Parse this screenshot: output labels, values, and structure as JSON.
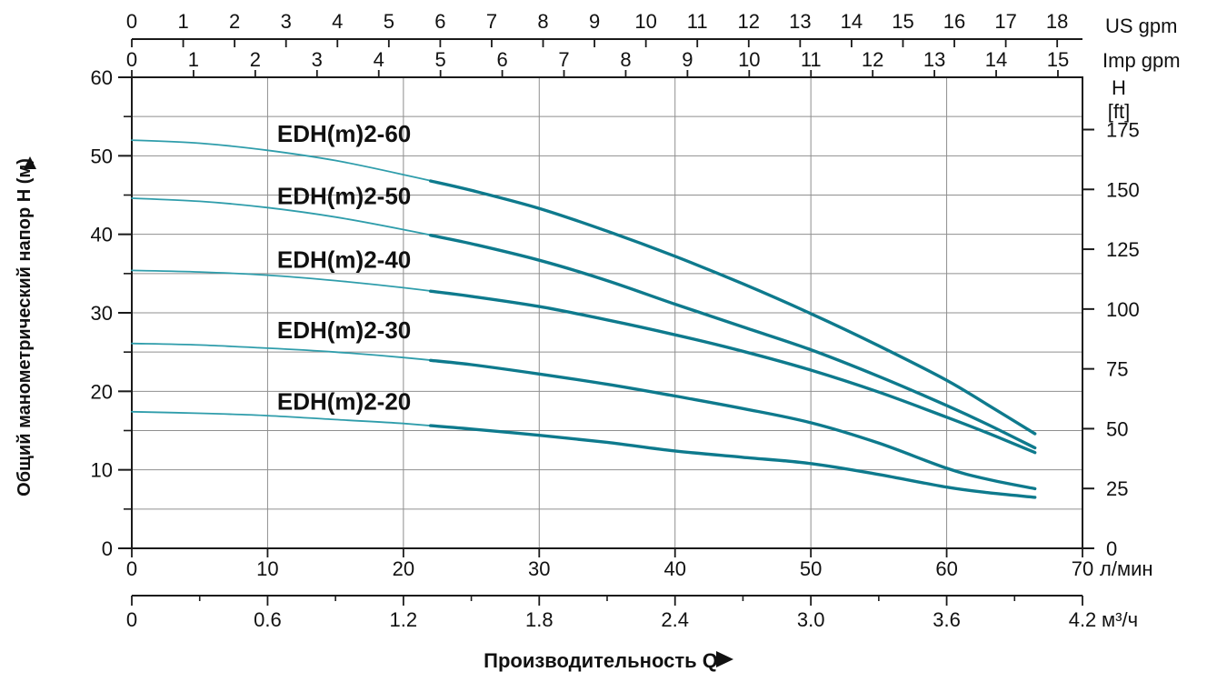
{
  "page": {
    "background": "#ffffff"
  },
  "chart_data": {
    "type": "line",
    "title": "",
    "xlabel": "Производительность Q",
    "xlabel_arrow_icon": "right-filled-triangle",
    "ylabel_left": "Общий манометрический напор H (м)",
    "ylabel_left_arrow_icon": "up-filled-triangle",
    "axes": {
      "us_gpm": {
        "unit_label": "US gpm",
        "lmin_per_unit": 3.78541,
        "ticks": [
          "0",
          "1",
          "2",
          "3",
          "4",
          "5",
          "6",
          "7",
          "8",
          "9",
          "10",
          "11",
          "12",
          "13",
          "14",
          "15",
          "16",
          "17",
          "18"
        ]
      },
      "imp_gpm": {
        "unit_label": "Imp gpm",
        "lmin_per_unit": 4.54609,
        "ticks": [
          "0",
          "1",
          "2",
          "3",
          "4",
          "5",
          "6",
          "7",
          "8",
          "9",
          "10",
          "11",
          "12",
          "13",
          "14",
          "15"
        ]
      },
      "l_min": {
        "unit_label": "л/мин",
        "min": 0,
        "max": 70,
        "ticks": [
          "0",
          "10",
          "20",
          "30",
          "40",
          "50",
          "60",
          "70"
        ]
      },
      "m3_h": {
        "unit_label": "м³/ч",
        "lmin_per_unit": 16.66667,
        "ticks": [
          "0",
          "0.6",
          "1.2",
          "1.8",
          "2.4",
          "3.0",
          "3.6",
          "4.2"
        ],
        "minor_ticks": [
          0.3,
          0.9,
          1.5,
          2.1,
          2.7,
          3.3,
          3.9
        ]
      },
      "h_m": {
        "min": 0,
        "max": 60,
        "ticks": [
          "0",
          "10",
          "20",
          "30",
          "40",
          "50",
          "60"
        ],
        "minor_step": 5
      },
      "h_ft": {
        "unit_label_line1": "H",
        "unit_label_line2": "[ft]",
        "m_per_ft": 0.3048,
        "ticks": [
          "0",
          "25",
          "50",
          "75",
          "100",
          "125",
          "150",
          "175"
        ]
      }
    },
    "grid": {
      "horizontal_step_m": 5,
      "vertical_step_lmin": 10,
      "grid_on": true
    },
    "legend_position": "inline-curve-labels",
    "series_label_q_lmin": 10.7,
    "series": [
      {
        "name": "EDH(m)2-60",
        "label_h_m": 52.8,
        "points": [
          [
            0,
            52.0
          ],
          [
            5,
            51.6
          ],
          [
            10,
            50.7
          ],
          [
            15,
            49.4
          ],
          [
            20,
            47.6
          ],
          [
            25,
            45.6
          ],
          [
            30,
            43.3
          ],
          [
            35,
            40.4
          ],
          [
            40,
            37.2
          ],
          [
            45,
            33.7
          ],
          [
            50,
            29.9
          ],
          [
            55,
            25.8
          ],
          [
            60,
            21.4
          ],
          [
            63,
            18.3
          ],
          [
            66.5,
            14.6
          ]
        ]
      },
      {
        "name": "EDH(m)2-50",
        "label_h_m": 44.9,
        "points": [
          [
            0,
            44.6
          ],
          [
            5,
            44.2
          ],
          [
            10,
            43.4
          ],
          [
            15,
            42.2
          ],
          [
            20,
            40.6
          ],
          [
            25,
            38.8
          ],
          [
            30,
            36.7
          ],
          [
            35,
            34.1
          ],
          [
            40,
            31.1
          ],
          [
            45,
            28.2
          ],
          [
            50,
            25.3
          ],
          [
            55,
            21.9
          ],
          [
            60,
            18.2
          ],
          [
            63,
            15.8
          ],
          [
            66.5,
            12.8
          ]
        ]
      },
      {
        "name": "EDH(m)2-40",
        "label_h_m": 36.8,
        "points": [
          [
            0,
            35.4
          ],
          [
            5,
            35.2
          ],
          [
            10,
            34.8
          ],
          [
            15,
            34.1
          ],
          [
            20,
            33.2
          ],
          [
            25,
            32.1
          ],
          [
            30,
            30.8
          ],
          [
            35,
            29.1
          ],
          [
            40,
            27.2
          ],
          [
            45,
            25.1
          ],
          [
            50,
            22.7
          ],
          [
            55,
            19.9
          ],
          [
            60,
            16.7
          ],
          [
            63,
            14.7
          ],
          [
            66.5,
            12.2
          ]
        ]
      },
      {
        "name": "EDH(m)2-30",
        "label_h_m": 27.8,
        "points": [
          [
            0,
            26.1
          ],
          [
            5,
            25.9
          ],
          [
            10,
            25.5
          ],
          [
            15,
            25.0
          ],
          [
            20,
            24.3
          ],
          [
            25,
            23.4
          ],
          [
            30,
            22.2
          ],
          [
            35,
            20.9
          ],
          [
            40,
            19.4
          ],
          [
            45,
            17.8
          ],
          [
            50,
            16.0
          ],
          [
            55,
            13.4
          ],
          [
            60,
            10.2
          ],
          [
            63,
            8.8
          ],
          [
            66.5,
            7.6
          ]
        ]
      },
      {
        "name": "EDH(m)2-20",
        "label_h_m": 18.7,
        "points": [
          [
            0,
            17.4
          ],
          [
            5,
            17.2
          ],
          [
            10,
            16.9
          ],
          [
            15,
            16.4
          ],
          [
            20,
            15.9
          ],
          [
            25,
            15.2
          ],
          [
            30,
            14.4
          ],
          [
            35,
            13.5
          ],
          [
            40,
            12.4
          ],
          [
            45,
            11.6
          ],
          [
            50,
            10.8
          ],
          [
            55,
            9.4
          ],
          [
            60,
            7.8
          ],
          [
            63,
            7.1
          ],
          [
            66.5,
            6.5
          ]
        ]
      }
    ],
    "colors": {
      "curve": "#0e7a8d",
      "curve_thin": "#2f9dab",
      "grid": "#8f8f8f",
      "axis": "#1a1a1a",
      "text": "#111111",
      "background": "#ffffff"
    }
  }
}
